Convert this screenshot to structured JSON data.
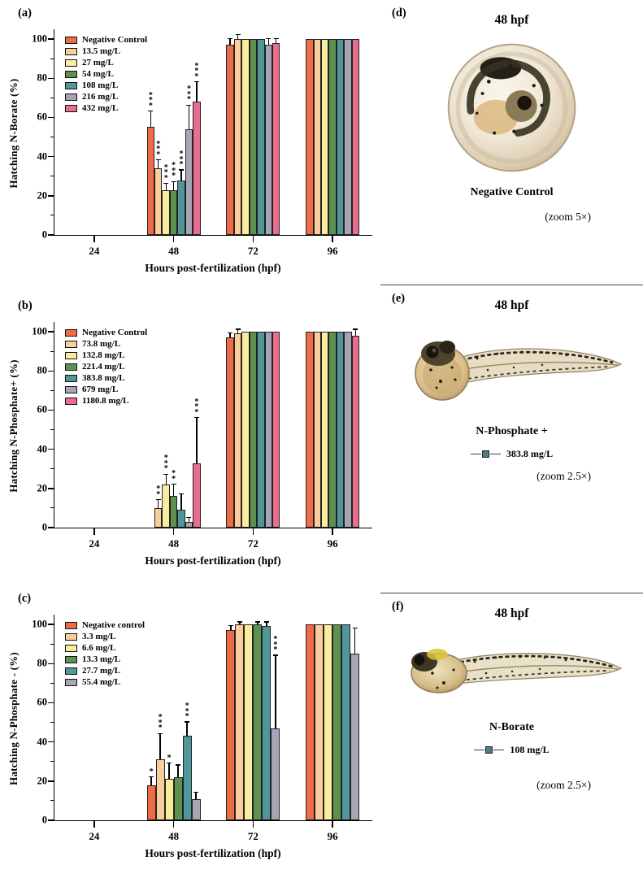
{
  "figure": {
    "panels_left": [
      {
        "label": "(a)"
      },
      {
        "label": "(b)"
      },
      {
        "label": "(c)"
      }
    ],
    "panels_right": [
      {
        "label": "(d)",
        "title": "48 hpf",
        "caption": "Negative Control",
        "zoom_note": "(zoom 5×)"
      },
      {
        "label": "(e)",
        "title": "48 hpf",
        "caption": "N-Phosphate +",
        "legend_value": "383.8 mg/L",
        "symbol_color": "#4A7D85",
        "zoom_note": "(zoom 2.5×)"
      },
      {
        "label": "(f)",
        "title": "48 hpf",
        "caption": "N-Borate",
        "legend_value": "108 mg/L",
        "symbol_color": "#4A7D85",
        "zoom_note": "(zoom 2.5×)"
      }
    ]
  },
  "chart_data": [
    {
      "type": "bar",
      "panel": "a",
      "xlabel": "Hours post-fertilization (hpf)",
      "ylabel": "Hatching N-Borate (%)",
      "categories": [
        "24",
        "48",
        "72",
        "96"
      ],
      "ylim": [
        0,
        100
      ],
      "yticks": [
        0,
        20,
        40,
        60,
        80,
        100
      ],
      "legend_position": "top-left",
      "grid": false,
      "series": [
        {
          "name": "Negative Control",
          "color": "#EF6B47",
          "values": [
            0,
            55,
            97,
            100
          ],
          "errors": [
            0,
            8,
            3,
            0
          ],
          "stars": [
            "",
            "***",
            "",
            ""
          ]
        },
        {
          "name": "13.5 mg/L",
          "color": "#F9CE9C",
          "values": [
            0,
            34,
            100,
            100
          ],
          "errors": [
            0,
            4,
            2,
            0
          ],
          "stars": [
            "",
            "***",
            "",
            ""
          ]
        },
        {
          "name": "27 mg/L",
          "color": "#F9ED9D",
          "values": [
            0,
            23,
            100,
            100
          ],
          "errors": [
            0,
            3,
            0,
            0
          ],
          "stars": [
            "",
            "***",
            "",
            ""
          ]
        },
        {
          "name": "54 mg/L",
          "color": "#5E9150",
          "values": [
            0,
            23,
            100,
            100
          ],
          "errors": [
            0,
            4,
            0,
            0
          ],
          "stars": [
            "",
            "***",
            "",
            ""
          ]
        },
        {
          "name": "108 mg/L",
          "color": "#4F979B",
          "values": [
            0,
            28,
            100,
            100
          ],
          "errors": [
            0,
            5,
            0,
            0
          ],
          "stars": [
            "",
            "***",
            "",
            ""
          ]
        },
        {
          "name": "216 mg/L",
          "color": "#A5A5B5",
          "values": [
            0,
            54,
            97,
            100
          ],
          "errors": [
            0,
            12,
            3,
            0
          ],
          "stars": [
            "",
            "***",
            "",
            ""
          ]
        },
        {
          "name": "432 mg/L",
          "color": "#E96D8F",
          "values": [
            0,
            68,
            98,
            100
          ],
          "errors": [
            0,
            10,
            2,
            0
          ],
          "stars": [
            "",
            "***",
            "",
            ""
          ]
        }
      ]
    },
    {
      "type": "bar",
      "panel": "b",
      "xlabel": "Hours post-fertilization (hpf)",
      "ylabel": "Hatching N-Phosphate+ (%)",
      "categories": [
        "24",
        "48",
        "72",
        "96"
      ],
      "ylim": [
        0,
        100
      ],
      "yticks": [
        0,
        20,
        40,
        60,
        80,
        100
      ],
      "legend_position": "top-left",
      "grid": false,
      "series": [
        {
          "name": "Negative Control",
          "color": "#EF6B47",
          "values": [
            0,
            0,
            97,
            100
          ],
          "errors": [
            0,
            0,
            2,
            0
          ],
          "stars": [
            "",
            "",
            "",
            ""
          ]
        },
        {
          "name": "73.8 mg/L",
          "color": "#F9CE9C",
          "values": [
            0,
            10,
            99,
            100
          ],
          "errors": [
            0,
            4,
            2,
            0
          ],
          "stars": [
            "",
            "**",
            "",
            ""
          ]
        },
        {
          "name": "132.8 mg/L",
          "color": "#F9ED9D",
          "values": [
            0,
            22,
            100,
            100
          ],
          "errors": [
            0,
            5,
            0,
            0
          ],
          "stars": [
            "",
            "***",
            "",
            ""
          ]
        },
        {
          "name": "221.4 mg/L",
          "color": "#5E9150",
          "values": [
            0,
            16,
            100,
            100
          ],
          "errors": [
            0,
            6,
            0,
            0
          ],
          "stars": [
            "",
            "**",
            "",
            ""
          ]
        },
        {
          "name": "383.8 mg/L",
          "color": "#4F979B",
          "values": [
            0,
            9,
            100,
            100
          ],
          "errors": [
            0,
            8,
            0,
            0
          ],
          "stars": [
            "",
            "",
            "",
            ""
          ]
        },
        {
          "name": "679 mg/L",
          "color": "#A5A5B5",
          "values": [
            0,
            3,
            100,
            100
          ],
          "errors": [
            0,
            2,
            0,
            0
          ],
          "stars": [
            "",
            "",
            "",
            ""
          ]
        },
        {
          "name": "1180.8 mg/L",
          "color": "#E96D8F",
          "values": [
            0,
            33,
            100,
            98
          ],
          "errors": [
            0,
            23,
            0,
            3
          ],
          "stars": [
            "",
            "***",
            "",
            ""
          ]
        }
      ]
    },
    {
      "type": "bar",
      "panel": "c",
      "xlabel": "Hours post-fertilization (hpf)",
      "ylabel": "Hatching N-Phosphate - (%)",
      "categories": [
        "24",
        "48",
        "72",
        "96"
      ],
      "ylim": [
        0,
        100
      ],
      "yticks": [
        0,
        20,
        40,
        60,
        80,
        100
      ],
      "legend_position": "top-left",
      "grid": false,
      "series": [
        {
          "name": "Negative control",
          "color": "#EF6B47",
          "values": [
            0,
            18,
            97,
            100
          ],
          "errors": [
            0,
            4,
            2,
            0
          ],
          "stars": [
            "",
            "*",
            "",
            ""
          ]
        },
        {
          "name": "3.3 mg/L",
          "color": "#F9CE9C",
          "values": [
            0,
            31,
            100,
            100
          ],
          "errors": [
            0,
            13,
            1,
            0
          ],
          "stars": [
            "",
            "***",
            "",
            ""
          ]
        },
        {
          "name": "6.6 mg/L",
          "color": "#F9ED9D",
          "values": [
            0,
            21,
            100,
            100
          ],
          "errors": [
            0,
            8,
            0,
            0
          ],
          "stars": [
            "",
            "*",
            "",
            ""
          ]
        },
        {
          "name": "13.3 mg/L",
          "color": "#5E9150",
          "values": [
            0,
            22,
            100,
            100
          ],
          "errors": [
            0,
            6,
            1,
            0
          ],
          "stars": [
            "",
            "",
            "",
            ""
          ]
        },
        {
          "name": "27.7 mg/L",
          "color": "#4F979B",
          "values": [
            0,
            43,
            99,
            100
          ],
          "errors": [
            0,
            7,
            2,
            0
          ],
          "stars": [
            "",
            "***",
            "",
            ""
          ]
        },
        {
          "name": "55.4 mg/L",
          "color": "#A5A5B5",
          "values": [
            0,
            11,
            47,
            85
          ],
          "errors": [
            0,
            3,
            37,
            13
          ],
          "stars": [
            "",
            "",
            "***",
            ""
          ]
        }
      ]
    }
  ]
}
